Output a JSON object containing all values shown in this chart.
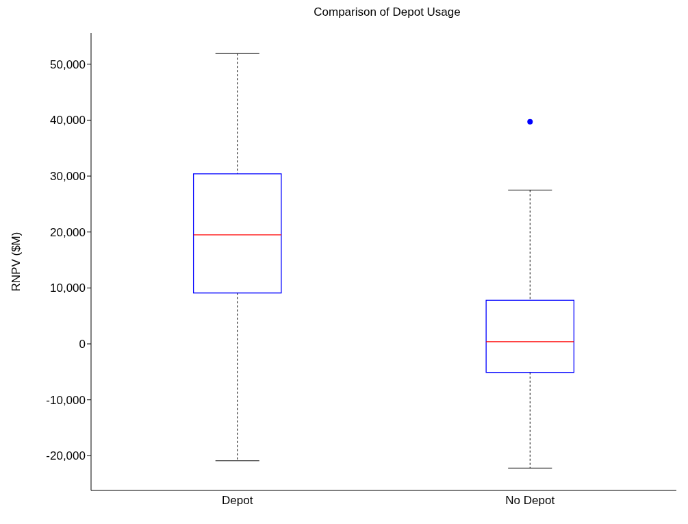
{
  "chart_data": {
    "type": "box",
    "title": "Comparison of Depot Usage",
    "ylabel": "RNPV ($M)",
    "categories": [
      "Depot",
      "No Depot"
    ],
    "color": "#0000ff",
    "boxes": [
      {
        "low": -20900,
        "q1": 9100,
        "median": 19500,
        "q3": 30400,
        "high": 51900
      },
      {
        "low": -22200,
        "q1": -5100,
        "median": 400,
        "q3": 7800,
        "high": 27500,
        "outliers": [
          39700
        ]
      }
    ],
    "ylim": [
      -26200,
      55600
    ],
    "yticks": [
      {
        "value": -20000,
        "label": "-20,000"
      },
      {
        "value": -10000,
        "label": "-10,000"
      },
      0,
      {
        "value": 10000,
        "label": "10,000"
      },
      {
        "value": 20000,
        "label": "20,000"
      },
      {
        "value": 30000,
        "label": "30,000"
      },
      {
        "value": 40000,
        "label": "40,000"
      },
      {
        "value": 50000,
        "label": "50,000"
      }
    ],
    "grid": false,
    "legend": false
  }
}
